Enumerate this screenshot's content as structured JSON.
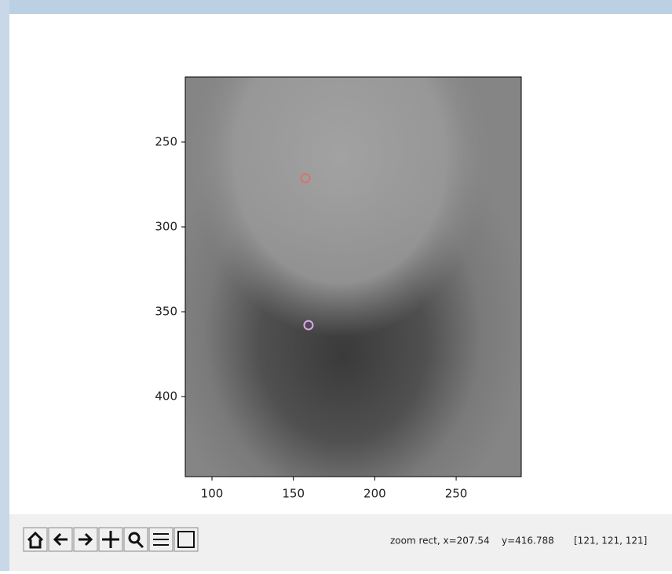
{
  "chart_data": {
    "type": "image-scatter",
    "xlim": [
      83.6,
      290
    ],
    "xticks": [
      100,
      150,
      200,
      250
    ],
    "ylim": [
      447.2,
      211.6
    ],
    "yticks": [
      250,
      300,
      350,
      400
    ],
    "points": [
      {
        "x": 157.4,
        "y": 271.3,
        "color": "#d9736a"
      },
      {
        "x": 159.3,
        "y": 357.9,
        "color": "#e0a8f0"
      }
    ]
  },
  "status": {
    "mode": "zoom rect, x=207.54",
    "y": "y=416.788",
    "pixel": "[121, 121, 121]"
  }
}
